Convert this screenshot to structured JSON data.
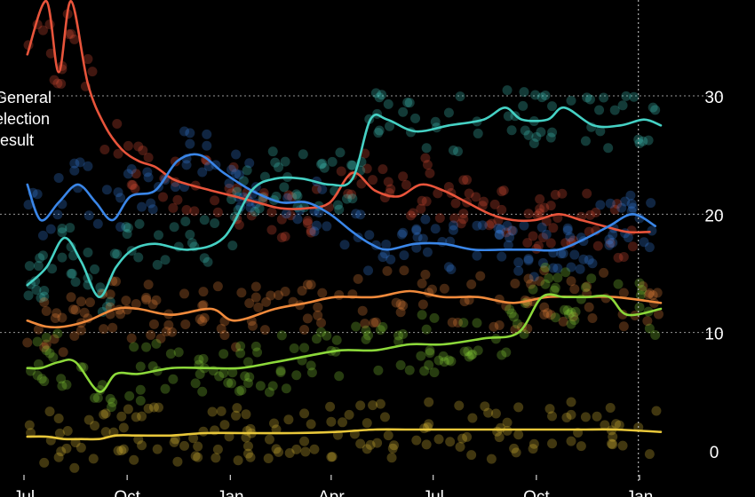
{
  "chart_data": {
    "type": "line",
    "title": "",
    "xlabel": "",
    "ylabel": "",
    "x_axis": {
      "type": "date",
      "tick_labels": [
        "Jul",
        "Oct",
        "Jan",
        "Apr",
        "Jul",
        "Oct",
        "Jan"
      ]
    },
    "y_axis": {
      "ylim": [
        0,
        31
      ],
      "ticks": [
        0,
        10,
        20,
        30
      ],
      "tick_labels": [
        "0",
        "10",
        "20",
        "30"
      ],
      "side": "right",
      "grid": "dotted"
    },
    "annotations": [
      {
        "lines": [
          "General",
          "election",
          "result"
        ],
        "at_x": "2024-07-04"
      }
    ],
    "reference_line": {
      "x": "2025-12-31",
      "style": "dotted-vertical"
    },
    "background": "#000000",
    "series": [
      {
        "color": "#e8543b",
        "x": [
          "2024-07-04",
          "2024-07-21",
          "2024-08-01",
          "2024-08-12",
          "2024-08-27",
          "2024-09-11",
          "2024-09-26",
          "2024-10-11",
          "2024-10-26",
          "2024-11-10",
          "2024-11-25",
          "2024-12-15",
          "2025-01-05",
          "2025-01-25",
          "2025-02-15",
          "2025-03-10",
          "2025-03-31",
          "2025-04-20",
          "2025-05-10",
          "2025-05-31",
          "2025-06-20",
          "2025-07-10",
          "2025-07-31",
          "2025-08-21",
          "2025-09-10",
          "2025-09-30",
          "2025-10-21",
          "2025-11-10",
          "2025-11-30",
          "2025-12-21",
          "2026-01-10"
        ],
        "values": [
          33.5,
          38,
          32,
          38,
          31,
          27.5,
          25.5,
          24.5,
          24,
          23,
          22.5,
          22,
          21.5,
          21,
          20.5,
          20.5,
          21,
          23.5,
          22,
          21.5,
          22.5,
          22,
          21,
          20,
          19.5,
          19.5,
          20,
          19.5,
          19,
          18.5,
          18.5
        ]
      },
      {
        "color": "#3a86e8",
        "x": [
          "2024-07-04",
          "2024-07-16",
          "2024-08-01",
          "2024-08-18",
          "2024-09-03",
          "2024-09-18",
          "2024-10-04",
          "2024-10-26",
          "2024-11-15",
          "2024-12-05",
          "2024-12-26",
          "2025-01-20",
          "2025-02-15",
          "2025-03-10",
          "2025-03-31",
          "2025-04-20",
          "2025-05-06",
          "2025-05-21",
          "2025-06-15",
          "2025-07-10",
          "2025-08-06",
          "2025-09-03",
          "2025-09-25",
          "2025-10-21",
          "2025-11-15",
          "2025-12-05",
          "2025-12-26",
          "2026-01-15"
        ],
        "values": [
          22.5,
          19.5,
          21,
          22.5,
          21,
          19.5,
          21.5,
          22,
          24.5,
          25,
          23.5,
          22,
          21,
          21,
          20,
          18.5,
          17.5,
          17,
          17.5,
          17.5,
          17,
          17,
          17,
          17,
          18,
          19,
          20,
          19
        ]
      },
      {
        "color": "#45d1c4",
        "x": [
          "2024-07-04",
          "2024-07-21",
          "2024-08-06",
          "2024-08-21",
          "2024-09-06",
          "2024-09-21",
          "2024-10-06",
          "2024-10-26",
          "2024-11-25",
          "2024-12-26",
          "2025-01-20",
          "2025-02-10",
          "2025-03-06",
          "2025-03-31",
          "2025-04-20",
          "2025-05-06",
          "2025-05-21",
          "2025-06-15",
          "2025-07-15",
          "2025-08-15",
          "2025-09-03",
          "2025-09-18",
          "2025-10-11",
          "2025-10-26",
          "2025-11-21",
          "2025-12-15",
          "2026-01-05",
          "2026-01-20"
        ],
        "values": [
          14,
          15.5,
          18,
          16,
          13,
          15.5,
          17,
          17.5,
          17,
          18,
          22,
          23,
          23,
          22.5,
          23,
          28,
          28,
          27,
          27.5,
          28,
          29,
          28,
          28,
          29,
          27.5,
          27.5,
          28,
          27.5
        ]
      },
      {
        "color": "#f08a3c",
        "x": [
          "2024-07-04",
          "2024-07-21",
          "2024-08-06",
          "2024-08-27",
          "2024-09-21",
          "2024-10-11",
          "2024-11-10",
          "2024-12-15",
          "2025-01-05",
          "2025-02-10",
          "2025-03-10",
          "2025-04-05",
          "2025-05-10",
          "2025-06-10",
          "2025-07-10",
          "2025-08-10",
          "2025-09-10",
          "2025-10-11",
          "2025-11-10",
          "2025-12-10",
          "2026-01-20"
        ],
        "values": [
          11,
          10.5,
          10.5,
          11,
          12,
          12,
          11.5,
          12,
          11,
          12,
          12.5,
          13,
          13,
          13.5,
          13,
          13,
          12.5,
          13,
          13,
          13,
          12.5
        ]
      },
      {
        "color": "#8cd83a",
        "x": [
          "2024-07-04",
          "2024-07-16",
          "2024-08-01",
          "2024-08-16",
          "2024-09-06",
          "2024-09-21",
          "2024-10-11",
          "2024-11-10",
          "2024-12-10",
          "2025-01-10",
          "2025-02-10",
          "2025-03-10",
          "2025-04-10",
          "2025-05-10",
          "2025-06-10",
          "2025-07-10",
          "2025-08-15",
          "2025-09-15",
          "2025-10-06",
          "2025-10-26",
          "2025-11-15",
          "2025-12-05",
          "2025-12-21",
          "2026-01-20"
        ],
        "values": [
          7,
          7,
          7.5,
          7.5,
          5,
          6.5,
          6.5,
          7,
          7,
          7,
          7.5,
          8,
          8.5,
          8.5,
          9,
          9,
          9.5,
          10,
          13,
          13,
          13,
          13,
          11.5,
          12
        ]
      },
      {
        "color": "#e8c73a",
        "x": [
          "2024-07-04",
          "2024-07-21",
          "2024-08-06",
          "2024-08-21",
          "2024-09-06",
          "2024-09-21",
          "2024-10-11",
          "2024-11-10",
          "2024-12-10",
          "2025-01-20",
          "2025-02-25",
          "2025-04-05",
          "2025-05-10",
          "2025-06-10",
          "2025-07-10",
          "2025-08-10",
          "2025-09-10",
          "2025-10-11",
          "2025-11-10",
          "2025-12-10",
          "2026-01-20"
        ],
        "values": [
          1.2,
          1.2,
          1,
          1,
          1,
          1.3,
          1.3,
          1.3,
          1.5,
          1.5,
          1.5,
          1.6,
          1.8,
          1.8,
          1.8,
          1.8,
          1.8,
          1.8,
          1.8,
          1.8,
          1.6
        ]
      }
    ]
  }
}
